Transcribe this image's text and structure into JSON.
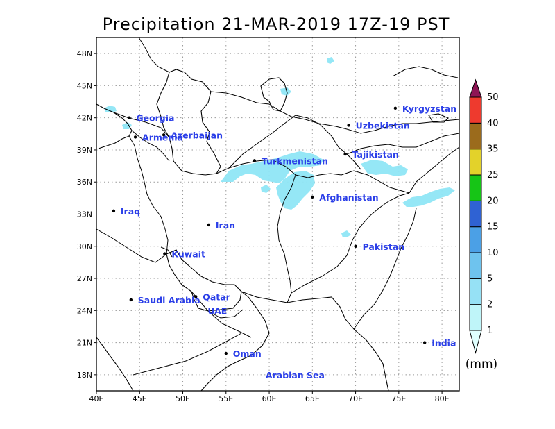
{
  "title": "Precipitation 21-MAR-2019 17Z-19 PST",
  "map": {
    "lon_range": [
      40,
      82
    ],
    "lat_range": [
      16.5,
      49.5
    ],
    "lon_ticks": [
      "40E",
      "45E",
      "50E",
      "55E",
      "60E",
      "65E",
      "70E",
      "75E",
      "80E"
    ],
    "lat_ticks": [
      "18N",
      "21N",
      "24N",
      "27N",
      "30N",
      "33N",
      "36N",
      "39N",
      "42N",
      "45N",
      "48N"
    ],
    "grid": true
  },
  "places": [
    {
      "name": "Georgia",
      "lon": 43.8,
      "lat": 42.0,
      "dot": true
    },
    {
      "name": "Azerbaijan",
      "lon": 47.8,
      "lat": 40.4,
      "dot": true
    },
    {
      "name": "Armenia",
      "lon": 44.5,
      "lat": 40.2,
      "dot": true
    },
    {
      "name": "Turkmenistan",
      "lon": 58.3,
      "lat": 38.0,
      "dot": true
    },
    {
      "name": "Uzbekistan",
      "lon": 69.2,
      "lat": 41.3,
      "dot": true
    },
    {
      "name": "Kyrgyzstan",
      "lon": 74.6,
      "lat": 42.9,
      "dot": true
    },
    {
      "name": "Tajikistan",
      "lon": 68.8,
      "lat": 38.6,
      "dot": true
    },
    {
      "name": "Afghanistan",
      "lon": 65.0,
      "lat": 34.6,
      "dot": true
    },
    {
      "name": "Iraq",
      "lon": 42.0,
      "lat": 33.3,
      "dot": true
    },
    {
      "name": "Iran",
      "lon": 53.0,
      "lat": 32.0,
      "dot": true
    },
    {
      "name": "Kuwait",
      "lon": 47.9,
      "lat": 29.3,
      "dot": true
    },
    {
      "name": "Pakistan",
      "lon": 70.0,
      "lat": 30.0,
      "dot": true
    },
    {
      "name": "Qatar",
      "lon": 51.5,
      "lat": 25.3,
      "dot": true
    },
    {
      "name": "Saudi Arabia",
      "lon": 44.0,
      "lat": 25.0,
      "dot": true
    },
    {
      "name": "UAE",
      "lon": 54.0,
      "lat": 24.0,
      "dot": false
    },
    {
      "name": "India",
      "lon": 78.0,
      "lat": 21.0,
      "dot": true
    },
    {
      "name": "Oman",
      "lon": 55.0,
      "lat": 20.0,
      "dot": true
    },
    {
      "name": "Arabian Sea",
      "lon": 63.0,
      "lat": 18.0,
      "dot": false
    }
  ],
  "colorbar": {
    "levels": [
      "1",
      "2",
      "5",
      "10",
      "15",
      "20",
      "25",
      "35",
      "40",
      "50"
    ],
    "colors": [
      "#e0fffe",
      "#bff5f9",
      "#96e1f5",
      "#6ec3ee",
      "#4ba0e6",
      "#2f62d3",
      "#16c516",
      "#e3d22a",
      "#9b6b1c",
      "#ee3a2e",
      "#c4163f",
      "#8e1555"
    ],
    "units": "(mm)"
  },
  "precip_color": "#8fe6f5"
}
